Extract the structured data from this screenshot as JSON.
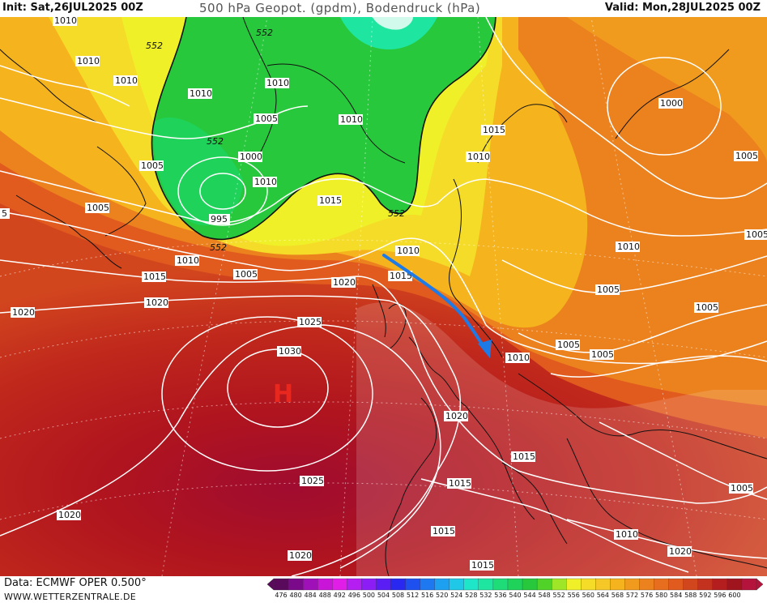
{
  "header": {
    "init": "Init: Sat,26JUL2025 00Z",
    "title": "500 hPa Geopot. (gpdm), Bodendruck (hPa)",
    "valid": "Valid: Mon,28JUL2025 00Z"
  },
  "footer": {
    "source": "Data: ECMWF OPER 0.500°",
    "site": "WWW.WETTERZENTRALE.DE"
  },
  "map": {
    "high_label": "H",
    "high_color": "#e8281e",
    "arrow_color": "#1e7ae6",
    "geopotential_labels": [
      "552",
      "552",
      "552",
      "552",
      "552"
    ],
    "pressure_labels": [
      "1010",
      "1010",
      "1010",
      "1010",
      "1010",
      "1010",
      "1010",
      "1010",
      "1010",
      "1010",
      "1010",
      "1010",
      "1010",
      "1005",
      "1005",
      "1005",
      "1005",
      "1005",
      "1005",
      "1005",
      "1005",
      "1005",
      "1005",
      "1005",
      "1000",
      "1000",
      "995",
      "5",
      "1015",
      "1015",
      "1015",
      "1015",
      "1015",
      "1015",
      "1015",
      "1015",
      "1020",
      "1020",
      "1020",
      "1020",
      "1020",
      "1020",
      "1020",
      "1025",
      "1025",
      "1030"
    ]
  },
  "colorbar": {
    "ticks": [
      "476",
      "480",
      "484",
      "488",
      "492",
      "496",
      "500",
      "504",
      "508",
      "512",
      "516",
      "520",
      "524",
      "528",
      "532",
      "536",
      "540",
      "544",
      "548",
      "552",
      "556",
      "560",
      "564",
      "568",
      "572",
      "576",
      "580",
      "584",
      "588",
      "592",
      "596",
      "600"
    ],
    "colors": [
      "#5a0a5a",
      "#7a0a8a",
      "#a010b8",
      "#c815d8",
      "#e01ee8",
      "#b41ef0",
      "#8c1ef5",
      "#5a1ef5",
      "#2828f0",
      "#1e50f0",
      "#1e78f0",
      "#1ea0f0",
      "#1ec8e6",
      "#1ee6c8",
      "#1ee6a0",
      "#1edc78",
      "#1ed25a",
      "#28c83c",
      "#50d228",
      "#a0e628",
      "#f0f028",
      "#f5dc28",
      "#f5c828",
      "#f5b41e",
      "#f09b1e",
      "#eb821e",
      "#e66e1e",
      "#e15a1e",
      "#d2461e",
      "#c3321e",
      "#b41e1e",
      "#a0141e",
      "#b4143c"
    ]
  }
}
